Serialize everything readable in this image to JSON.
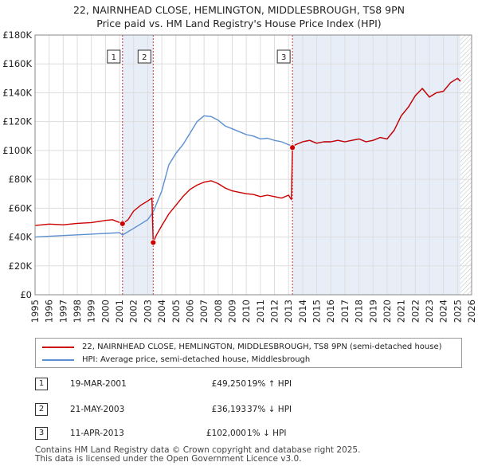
{
  "title_line1": "22, NAIRNHEAD CLOSE, HEMLINGTON, MIDDLESBROUGH, TS8 9PN",
  "title_line2": "Price paid vs. HM Land Registry's House Price Index (HPI)",
  "legend": {
    "property_label": "22, NAIRNHEAD CLOSE, HEMLINGTON, MIDDLESBROUGH, TS8 9PN (semi-detached house)",
    "hpi_label": "HPI: Average price, semi-detached house, Middlesbrough"
  },
  "sales": [
    {
      "num": "1",
      "date": "19-MAR-2001",
      "price": "£49,250",
      "hpi": "19% ↑ HPI"
    },
    {
      "num": "2",
      "date": "21-MAY-2003",
      "price": "£36,193",
      "hpi": "37% ↓ HPI"
    },
    {
      "num": "3",
      "date": "11-APR-2013",
      "price": "£102,000",
      "hpi": "1% ↓ HPI"
    }
  ],
  "footer_line1": "Contains HM Land Registry data © Crown copyright and database right 2025.",
  "footer_line2": "This data is licensed under the Open Government Licence v3.0.",
  "colors": {
    "property": "#cc0000",
    "hpi": "#5b8fd0",
    "band": "#e8eef8",
    "grid": "#dddddd"
  },
  "chart_data": {
    "type": "line",
    "title": "Price paid vs. HM Land Registry's House Price Index (HPI)",
    "xlabel": "",
    "ylabel": "",
    "xlim": [
      1995,
      2026
    ],
    "ylim": [
      0,
      180000
    ],
    "y_ticks": [
      0,
      20000,
      40000,
      60000,
      80000,
      100000,
      120000,
      140000,
      160000,
      180000
    ],
    "y_tick_labels": [
      "£0",
      "£20K",
      "£40K",
      "£60K",
      "£80K",
      "£100K",
      "£120K",
      "£140K",
      "£160K",
      "£180K"
    ],
    "x_ticks": [
      1995,
      1996,
      1997,
      1998,
      1999,
      2000,
      2001,
      2002,
      2003,
      2004,
      2005,
      2006,
      2007,
      2008,
      2009,
      2010,
      2011,
      2012,
      2013,
      2014,
      2015,
      2016,
      2017,
      2018,
      2019,
      2020,
      2021,
      2022,
      2023,
      2024,
      2025,
      2026
    ],
    "shaded_spans": [
      [
        2001.21,
        2003.39
      ],
      [
        2013.28,
        2025.2
      ]
    ],
    "hatched_span": [
      2025.2,
      2026
    ],
    "series": [
      {
        "name": "22, NAIRNHEAD CLOSE, HEMLINGTON, MIDDLESBROUGH, TS8 9PN (semi-detached house)",
        "color": "#cc0000",
        "x": [
          1995,
          1996,
          1997,
          1998,
          1999,
          2000,
          2000.5,
          2001.21,
          2001.6,
          2002,
          2002.5,
          2003,
          2003.3,
          2003.39,
          2003.6,
          2004,
          2004.5,
          2005,
          2005.5,
          2006,
          2006.5,
          2007,
          2007.5,
          2008,
          2008.5,
          2009,
          2009.5,
          2010,
          2010.5,
          2011,
          2011.5,
          2012,
          2012.5,
          2013,
          2013.2,
          2013.28,
          2013.5,
          2014,
          2014.5,
          2015,
          2015.5,
          2016,
          2016.5,
          2017,
          2017.5,
          2018,
          2018.5,
          2019,
          2019.5,
          2020,
          2020.5,
          2021,
          2021.5,
          2022,
          2022.5,
          2023,
          2023.5,
          2024,
          2024.5,
          2025,
          2025.2
        ],
        "y": [
          48000,
          49000,
          48500,
          49500,
          50000,
          51500,
          52000,
          49250,
          52000,
          58000,
          62000,
          65000,
          67000,
          36193,
          41000,
          48000,
          56000,
          62000,
          68000,
          73000,
          76000,
          78000,
          79000,
          77000,
          74000,
          72000,
          71000,
          70000,
          69500,
          68000,
          69000,
          68000,
          67000,
          69000,
          66000,
          102000,
          104000,
          106000,
          107000,
          105000,
          106000,
          106000,
          107000,
          106000,
          107000,
          108000,
          106000,
          107000,
          109000,
          108000,
          114000,
          124000,
          130000,
          138000,
          143000,
          137000,
          140000,
          141000,
          147000,
          150000,
          148000
        ]
      },
      {
        "name": "HPI: Average price, semi-detached house, Middlesbrough",
        "color": "#5b8fd0",
        "x": [
          1995,
          1996,
          1997,
          1998,
          1999,
          2000,
          2001,
          2001.21,
          2002,
          2003,
          2003.39,
          2004,
          2004.5,
          2005,
          2005.5,
          2006,
          2006.5,
          2007,
          2007.5,
          2008,
          2008.5,
          2009,
          2009.5,
          2010,
          2010.5,
          2011,
          2011.5,
          2012,
          2012.5,
          2013,
          2013.28,
          2013.5,
          2014,
          2014.5,
          2015,
          2015.5,
          2016,
          2016.5,
          2017,
          2017.5,
          2018,
          2018.5,
          2019,
          2019.5,
          2020,
          2020.5,
          2021,
          2021.5,
          2022,
          2022.5,
          2023,
          2023.5,
          2024,
          2024.5,
          2025,
          2025.2
        ],
        "y": [
          40000,
          40500,
          41000,
          41500,
          42000,
          42500,
          43000,
          41400,
          46000,
          52000,
          57400,
          72000,
          90000,
          98000,
          104000,
          112000,
          120000,
          124000,
          123500,
          121000,
          117000,
          115000,
          113000,
          111000,
          110000,
          108000,
          108500,
          107000,
          106000,
          104000,
          103000,
          104000,
          106000,
          107000,
          105000,
          106000,
          106000,
          107000,
          106000,
          107000,
          108000,
          106000,
          107000,
          109000,
          108000,
          114000,
          124000,
          130000,
          138000,
          143000,
          137000,
          140000,
          141000,
          147000,
          150000,
          148000
        ]
      }
    ],
    "annotations": [
      {
        "label": "1",
        "x": 2001.21,
        "y": 49250
      },
      {
        "label": "2",
        "x": 2003.39,
        "y": 36193
      },
      {
        "label": "3",
        "x": 2013.28,
        "y": 102000
      }
    ]
  }
}
